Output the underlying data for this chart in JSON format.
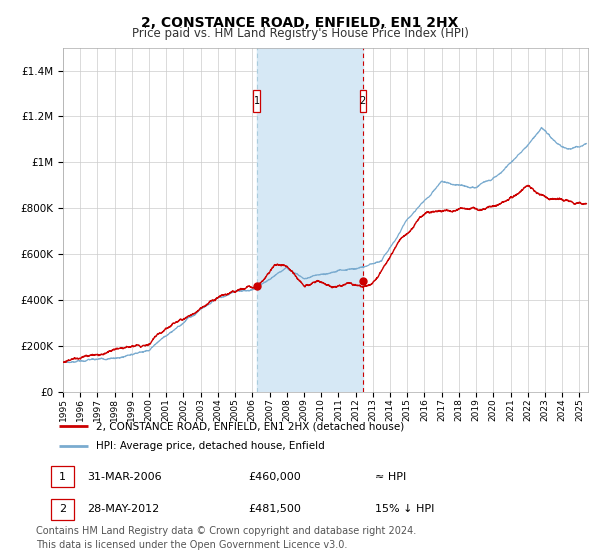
{
  "title": "2, CONSTANCE ROAD, ENFIELD, EN1 2HX",
  "subtitle": "Price paid vs. HM Land Registry's House Price Index (HPI)",
  "title_fontsize": 10,
  "subtitle_fontsize": 8.5,
  "background_color": "#ffffff",
  "plot_bg_color": "#ffffff",
  "grid_color": "#cccccc",
  "hpi_line_color": "#7aabcf",
  "price_line_color": "#cc0000",
  "shading_color": "#d6e8f5",
  "sale1_date_num": 2006.25,
  "sale1_price": 460000,
  "sale2_date_num": 2012.42,
  "sale2_price": 481500,
  "xlim_left": 1995,
  "xlim_right": 2025.5,
  "ylim_bottom": 0,
  "ylim_top": 1500000,
  "yticks": [
    0,
    200000,
    400000,
    600000,
    800000,
    1000000,
    1200000,
    1400000
  ],
  "ytick_labels": [
    "£0",
    "£200K",
    "£400K",
    "£600K",
    "£800K",
    "£1M",
    "£1.2M",
    "£1.4M"
  ],
  "xtick_years": [
    1995,
    1996,
    1997,
    1998,
    1999,
    2000,
    2001,
    2002,
    2003,
    2004,
    2005,
    2006,
    2007,
    2008,
    2009,
    2010,
    2011,
    2012,
    2013,
    2014,
    2015,
    2016,
    2017,
    2018,
    2019,
    2020,
    2021,
    2022,
    2023,
    2024,
    2025
  ],
  "legend_labels": [
    "2, CONSTANCE ROAD, ENFIELD, EN1 2HX (detached house)",
    "HPI: Average price, detached house, Enfield"
  ],
  "table_rows": [
    {
      "num": "1",
      "date": "31-MAR-2006",
      "price": "£460,000",
      "rel": "≈ HPI"
    },
    {
      "num": "2",
      "date": "28-MAY-2012",
      "price": "£481,500",
      "rel": "15% ↓ HPI"
    }
  ],
  "footer": "Contains HM Land Registry data © Crown copyright and database right 2024.\nThis data is licensed under the Open Government Licence v3.0.",
  "footer_fontsize": 7
}
